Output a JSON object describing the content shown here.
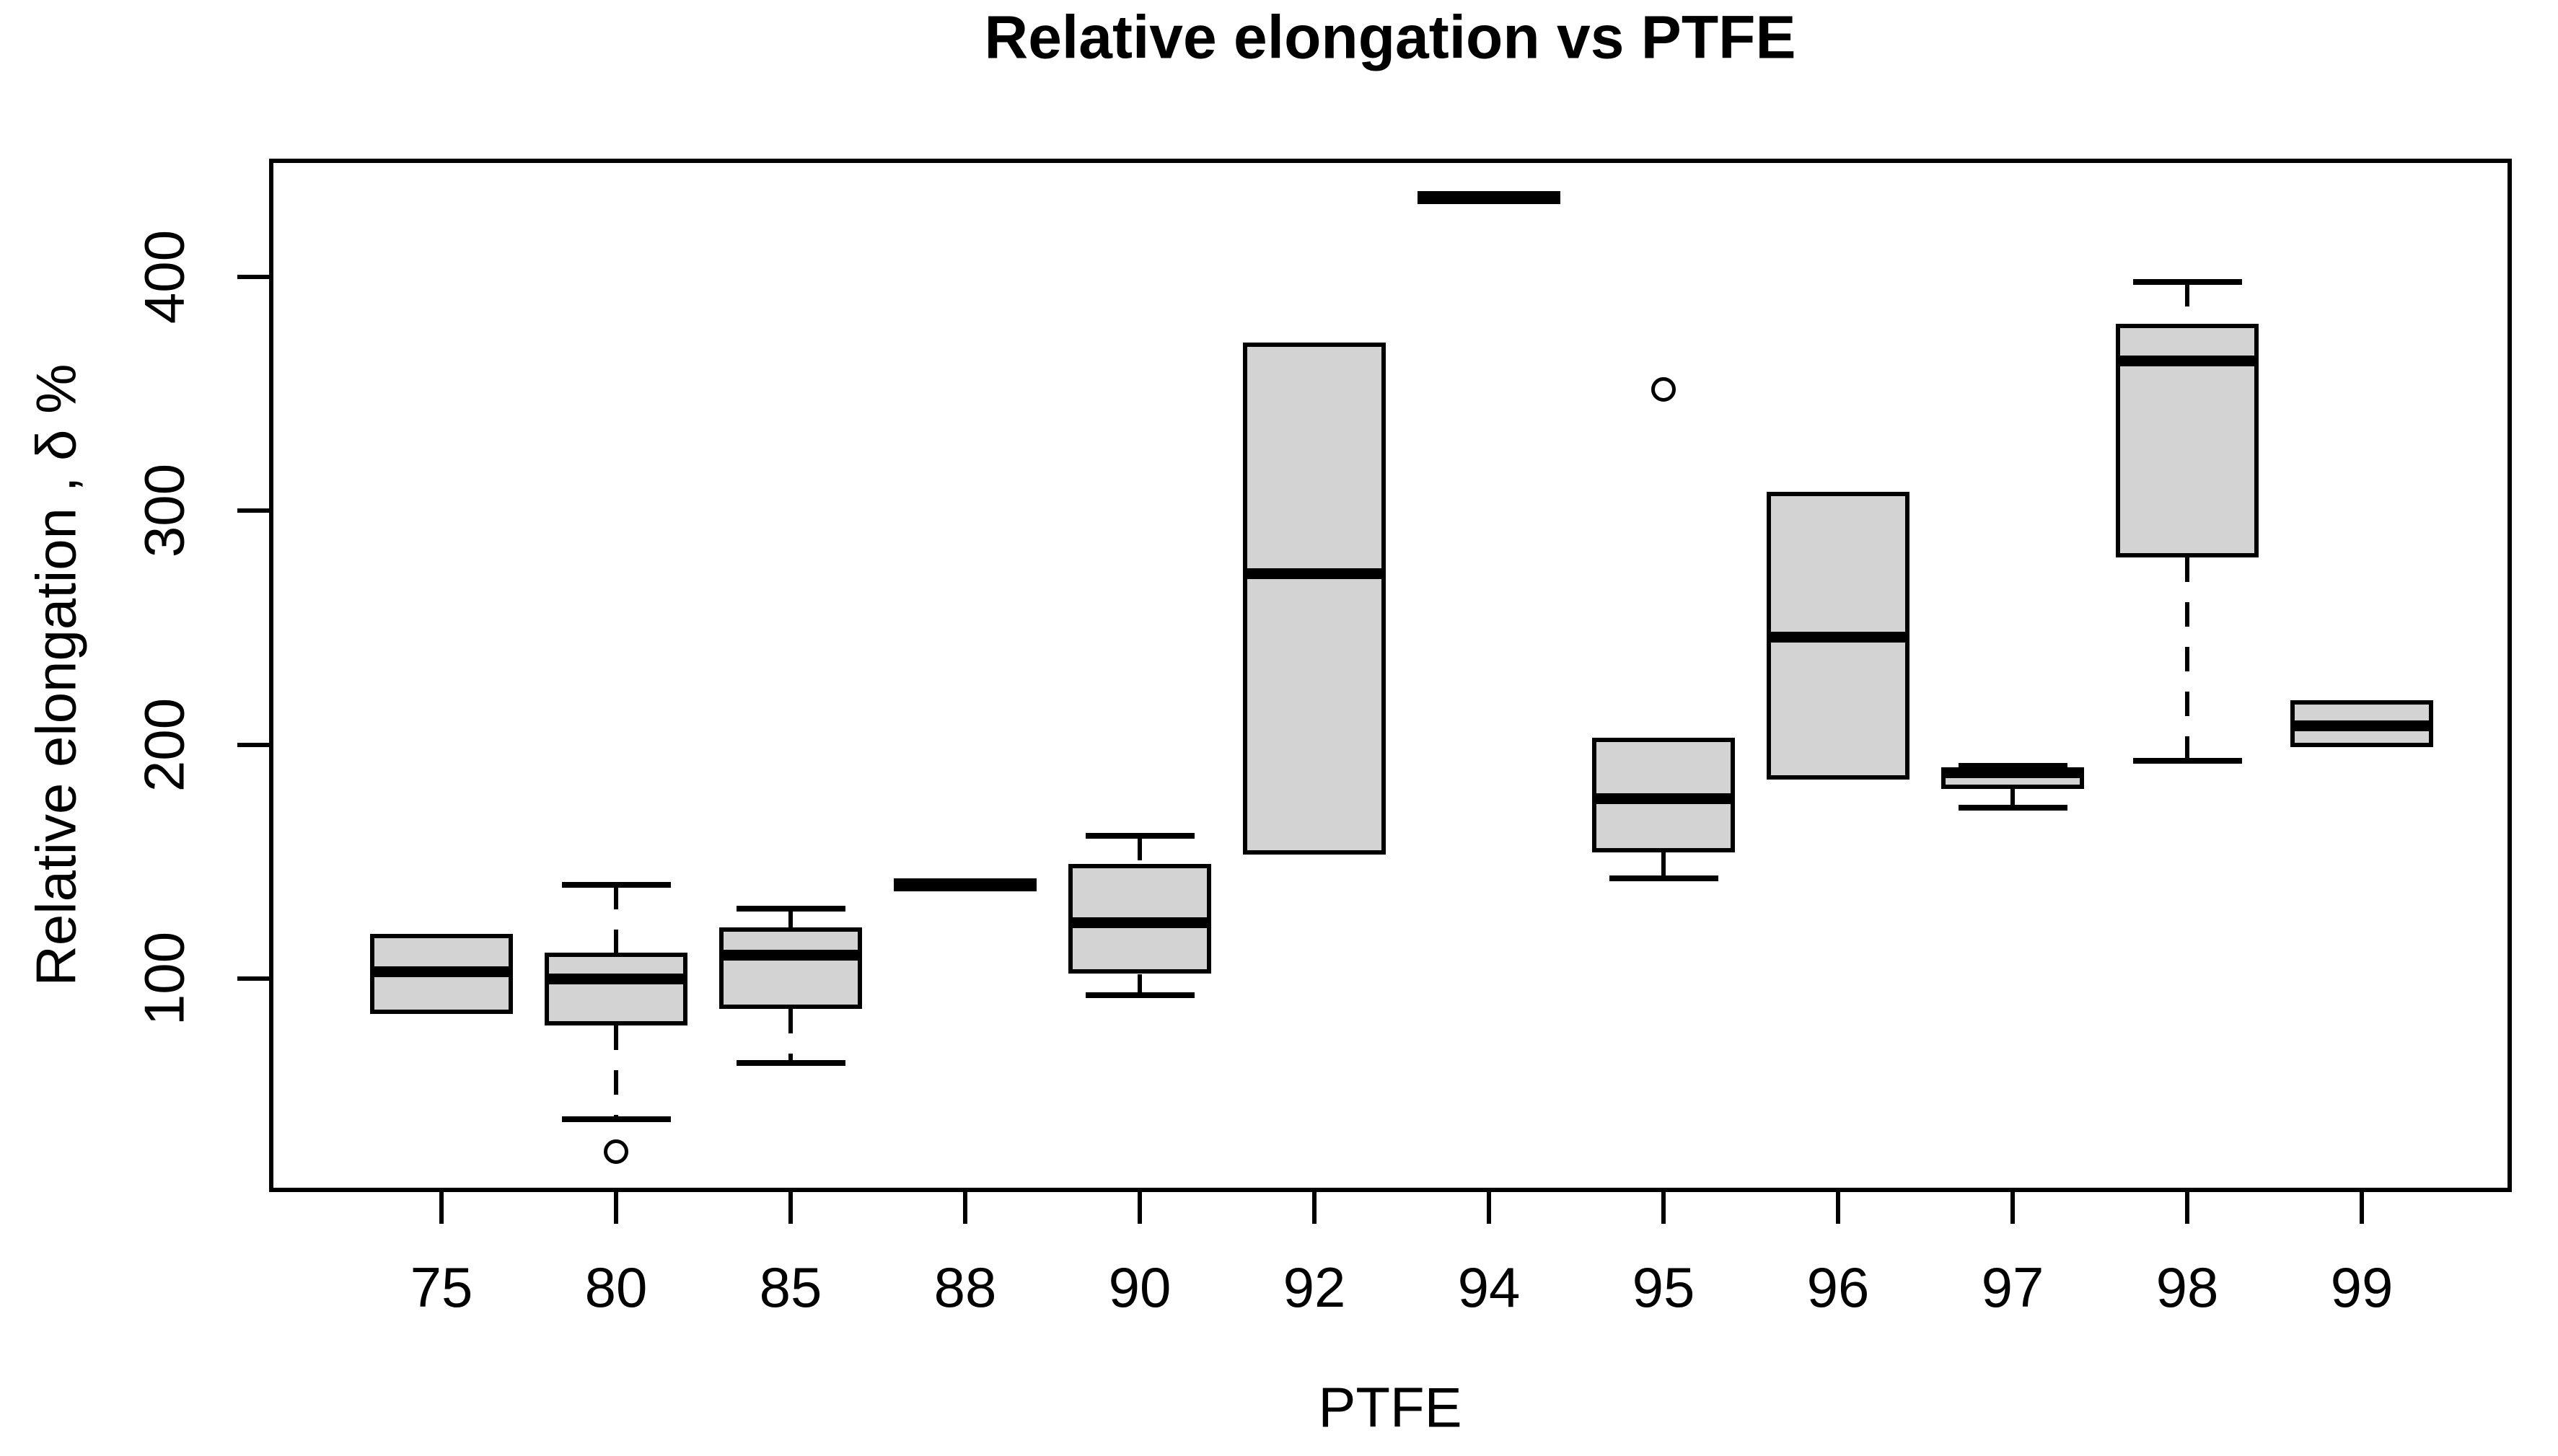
{
  "chart_data": {
    "type": "boxplot",
    "title": "Relative elongation vs PTFE",
    "xlabel": "PTFE",
    "ylabel": "Relative elongation , δ %",
    "categories": [
      "75",
      "80",
      "85",
      "88",
      "90",
      "92",
      "94",
      "95",
      "96",
      "97",
      "98",
      "99"
    ],
    "y_ticks": [
      100,
      200,
      300,
      400
    ],
    "ylim": [
      9,
      450
    ],
    "grid": false,
    "legend": "none",
    "box_fill_color": "#d3d3d3",
    "line_color": "#000000",
    "background_color": "#ffffff",
    "boxes": [
      {
        "label": "75",
        "whislo": 85,
        "q1": 85,
        "median": 103,
        "q3": 119,
        "whishi": 119,
        "outliers": []
      },
      {
        "label": "80",
        "whislo": 40,
        "q1": 80,
        "median": 100,
        "q3": 111,
        "whishi": 140,
        "outliers": [
          26
        ]
      },
      {
        "label": "85",
        "whislo": 64,
        "q1": 87,
        "median": 110,
        "q3": 122,
        "whishi": 130,
        "outliers": []
      },
      {
        "label": "88",
        "whislo": 140,
        "q1": 140,
        "median": 140,
        "q3": 140,
        "whishi": 140,
        "outliers": []
      },
      {
        "label": "90",
        "whislo": 93,
        "q1": 102,
        "median": 124,
        "q3": 149,
        "whishi": 161,
        "outliers": []
      },
      {
        "label": "92",
        "whislo": 153,
        "q1": 153,
        "median": 273,
        "q3": 372,
        "whishi": 372,
        "outliers": []
      },
      {
        "label": "94",
        "whislo": 434,
        "q1": 434,
        "median": 434,
        "q3": 434,
        "whishi": 434,
        "outliers": []
      },
      {
        "label": "95",
        "whislo": 143,
        "q1": 154,
        "median": 177,
        "q3": 203,
        "whishi": 203,
        "outliers": [
          352
        ]
      },
      {
        "label": "96",
        "whislo": 185,
        "q1": 185,
        "median": 246,
        "q3": 308,
        "whishi": 308,
        "outliers": []
      },
      {
        "label": "97",
        "whislo": 173,
        "q1": 181,
        "median": 188,
        "q3": 190,
        "whishi": 191,
        "outliers": []
      },
      {
        "label": "98",
        "whislo": 193,
        "q1": 280,
        "median": 364,
        "q3": 380,
        "whishi": 398,
        "outliers": []
      },
      {
        "label": "99",
        "whislo": 199,
        "q1": 199,
        "median": 208,
        "q3": 219,
        "whishi": 219,
        "outliers": []
      }
    ]
  }
}
